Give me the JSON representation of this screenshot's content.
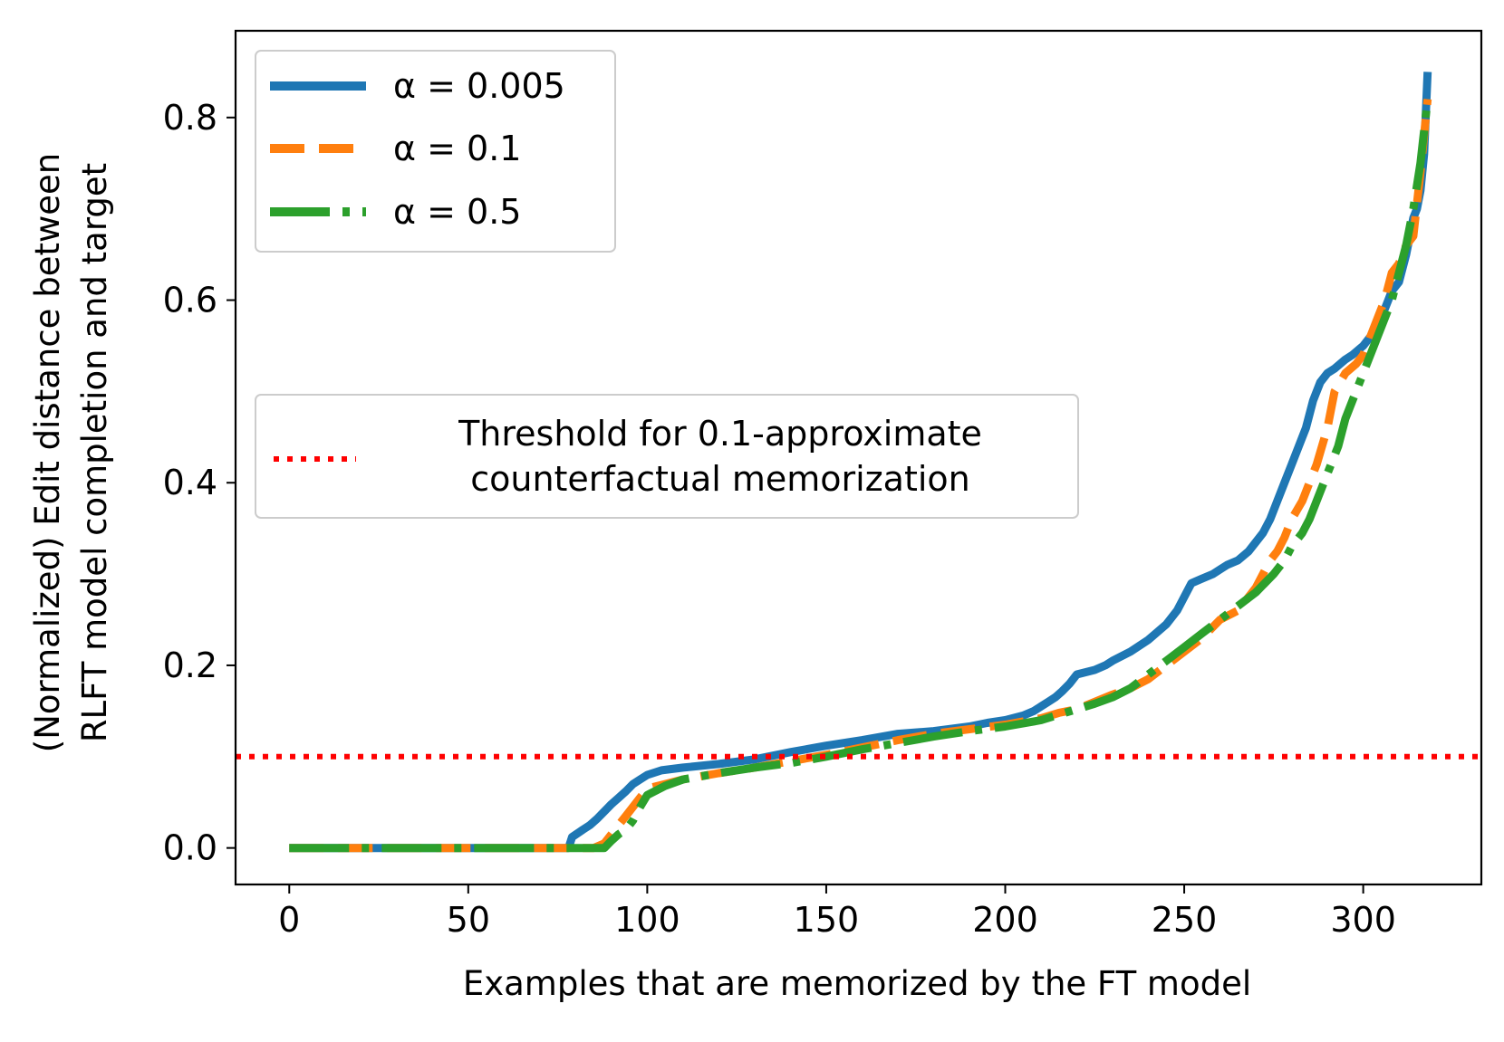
{
  "chart_data": {
    "type": "line",
    "xlabel": "Examples that are memorized by the FT model",
    "ylabel_lines": [
      "(Normalized) Edit distance between",
      "RLFT model completion and target"
    ],
    "xlim": [
      -15,
      333
    ],
    "ylim": [
      -0.04,
      0.895
    ],
    "xticks": [
      0,
      50,
      100,
      150,
      200,
      250,
      300
    ],
    "xtick_labels": [
      "0",
      "50",
      "100",
      "150",
      "200",
      "250",
      "300"
    ],
    "yticks": [
      0.0,
      0.2,
      0.4,
      0.6,
      0.8
    ],
    "ytick_labels": [
      "0.0",
      "0.2",
      "0.4",
      "0.6",
      "0.8"
    ],
    "grid": false,
    "series": [
      {
        "name": "α = 0.005",
        "color": "#1f77b4",
        "style": "solid",
        "x": [
          0,
          30,
          60,
          78,
          79,
          82,
          84,
          86,
          88,
          90,
          92,
          94,
          96,
          98,
          100,
          104,
          110,
          120,
          130,
          140,
          150,
          160,
          170,
          180,
          190,
          195,
          200,
          205,
          208,
          210,
          212,
          214,
          216,
          218,
          220,
          225,
          228,
          230,
          235,
          240,
          245,
          248,
          250,
          252,
          255,
          258,
          260,
          262,
          265,
          268,
          270,
          272,
          274,
          276,
          278,
          280,
          282,
          284,
          286,
          288,
          290,
          292,
          295,
          297,
          300,
          302,
          304,
          305,
          306,
          307,
          308,
          310,
          312,
          313,
          314,
          315,
          316,
          317,
          318
        ],
        "y": [
          0.0,
          0.0,
          0.0,
          0.0,
          0.012,
          0.02,
          0.025,
          0.032,
          0.04,
          0.048,
          0.055,
          0.062,
          0.07,
          0.075,
          0.08,
          0.085,
          0.088,
          0.092,
          0.097,
          0.105,
          0.112,
          0.118,
          0.125,
          0.128,
          0.133,
          0.137,
          0.14,
          0.145,
          0.15,
          0.155,
          0.16,
          0.165,
          0.172,
          0.18,
          0.19,
          0.195,
          0.2,
          0.205,
          0.215,
          0.228,
          0.245,
          0.26,
          0.275,
          0.29,
          0.295,
          0.3,
          0.305,
          0.31,
          0.315,
          0.325,
          0.335,
          0.345,
          0.36,
          0.38,
          0.4,
          0.42,
          0.44,
          0.46,
          0.49,
          0.51,
          0.52,
          0.525,
          0.535,
          0.54,
          0.55,
          0.56,
          0.575,
          0.585,
          0.59,
          0.6,
          0.61,
          0.62,
          0.65,
          0.67,
          0.69,
          0.7,
          0.72,
          0.76,
          0.85
        ]
      },
      {
        "name": "α = 0.1",
        "color": "#ff7f0e",
        "style": "dashed",
        "x": [
          0,
          30,
          60,
          85,
          88,
          90,
          92,
          94,
          96,
          98,
          100,
          105,
          110,
          120,
          130,
          140,
          150,
          160,
          170,
          180,
          190,
          200,
          210,
          215,
          220,
          225,
          230,
          235,
          240,
          245,
          250,
          255,
          260,
          265,
          268,
          270,
          272,
          274,
          276,
          278,
          280,
          283,
          285,
          287,
          290,
          292,
          295,
          298,
          300,
          302,
          304,
          306,
          308,
          310,
          312,
          314,
          316,
          318
        ],
        "y": [
          0.0,
          0.0,
          0.0,
          0.0,
          0.005,
          0.015,
          0.025,
          0.035,
          0.045,
          0.055,
          0.065,
          0.07,
          0.075,
          0.082,
          0.088,
          0.095,
          0.102,
          0.11,
          0.118,
          0.125,
          0.13,
          0.135,
          0.142,
          0.148,
          0.152,
          0.16,
          0.168,
          0.175,
          0.185,
          0.2,
          0.215,
          0.23,
          0.25,
          0.26,
          0.275,
          0.285,
          0.3,
          0.315,
          0.325,
          0.34,
          0.36,
          0.38,
          0.4,
          0.42,
          0.46,
          0.5,
          0.52,
          0.53,
          0.54,
          0.56,
          0.58,
          0.6,
          0.63,
          0.64,
          0.66,
          0.67,
          0.74,
          0.82
        ]
      },
      {
        "name": "α = 0.5",
        "color": "#2ca02c",
        "style": "dashdot",
        "x": [
          0,
          30,
          60,
          88,
          90,
          92,
          94,
          96,
          98,
          100,
          105,
          110,
          120,
          130,
          140,
          150,
          160,
          170,
          180,
          190,
          200,
          210,
          215,
          220,
          225,
          230,
          235,
          240,
          245,
          250,
          255,
          260,
          265,
          270,
          275,
          278,
          280,
          283,
          285,
          287,
          290,
          293,
          295,
          298,
          300,
          302,
          304,
          306,
          308,
          310,
          312,
          314,
          316,
          318
        ],
        "y": [
          0.0,
          0.0,
          0.0,
          0.0,
          0.008,
          0.015,
          0.02,
          0.03,
          0.045,
          0.058,
          0.068,
          0.075,
          0.082,
          0.088,
          0.093,
          0.1,
          0.108,
          0.115,
          0.122,
          0.128,
          0.133,
          0.14,
          0.146,
          0.152,
          0.158,
          0.165,
          0.175,
          0.19,
          0.205,
          0.22,
          0.235,
          0.25,
          0.265,
          0.28,
          0.3,
          0.315,
          0.33,
          0.345,
          0.36,
          0.38,
          0.41,
          0.44,
          0.47,
          0.5,
          0.52,
          0.54,
          0.56,
          0.58,
          0.6,
          0.63,
          0.66,
          0.7,
          0.75,
          0.82
        ]
      },
      {
        "name": "Threshold for 0.1-approximate\ncounterfactual memorization",
        "color": "#ff0000",
        "style": "dotted",
        "y_const": 0.1
      }
    ],
    "legend1": {
      "placement": "upper-left",
      "entries": [
        "α = 0.005",
        "α = 0.1",
        "α = 0.5"
      ]
    },
    "legend2": {
      "placement": "center-left",
      "lines": [
        "Threshold for 0.1-approximate",
        "counterfactual memorization"
      ]
    }
  }
}
